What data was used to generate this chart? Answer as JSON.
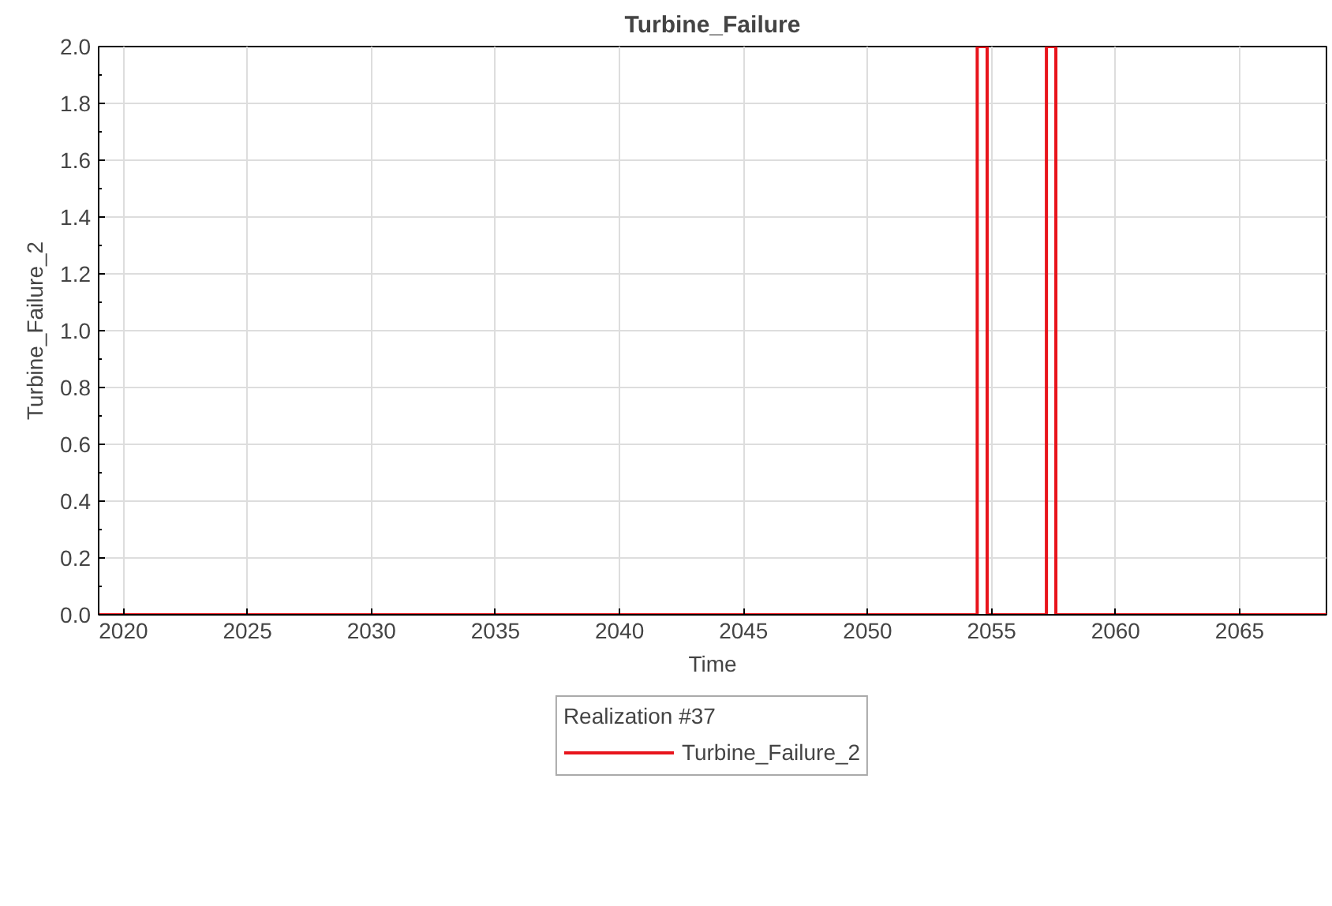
{
  "chart_data": {
    "type": "step",
    "title": "Turbine_Failure",
    "xlabel": "Time",
    "ylabel": "Turbine_Failure_2",
    "legend_title": "Realization #37",
    "series": [
      {
        "name": "Turbine_Failure_2",
        "color": "#e8141c",
        "x": [
          2019,
          2054.42,
          2054.82,
          2057.21,
          2057.59,
          2068.5
        ],
        "values": [
          0,
          2,
          0,
          2,
          0,
          0
        ]
      }
    ],
    "xlim": [
      2019,
      2068.5
    ],
    "xticks": [
      2020,
      2025,
      2030,
      2035,
      2040,
      2045,
      2050,
      2055,
      2060,
      2065
    ],
    "ylim": [
      0,
      2
    ],
    "yticks": [
      {
        "value": 0,
        "label": "0.0"
      },
      {
        "value": 0.2,
        "label": "0.2"
      },
      {
        "value": 0.4,
        "label": "0.4"
      },
      {
        "value": 0.6,
        "label": "0.6"
      },
      {
        "value": 0.8,
        "label": "0.8"
      },
      {
        "value": 1,
        "label": "1.0"
      },
      {
        "value": 1.2,
        "label": "1.2"
      },
      {
        "value": 1.4,
        "label": "1.4"
      },
      {
        "value": 1.6,
        "label": "1.6"
      },
      {
        "value": 1.8,
        "label": "1.8"
      },
      {
        "value": 2,
        "label": "2.0"
      }
    ],
    "grid": true,
    "legend": "bottom",
    "line_style": "solid"
  }
}
